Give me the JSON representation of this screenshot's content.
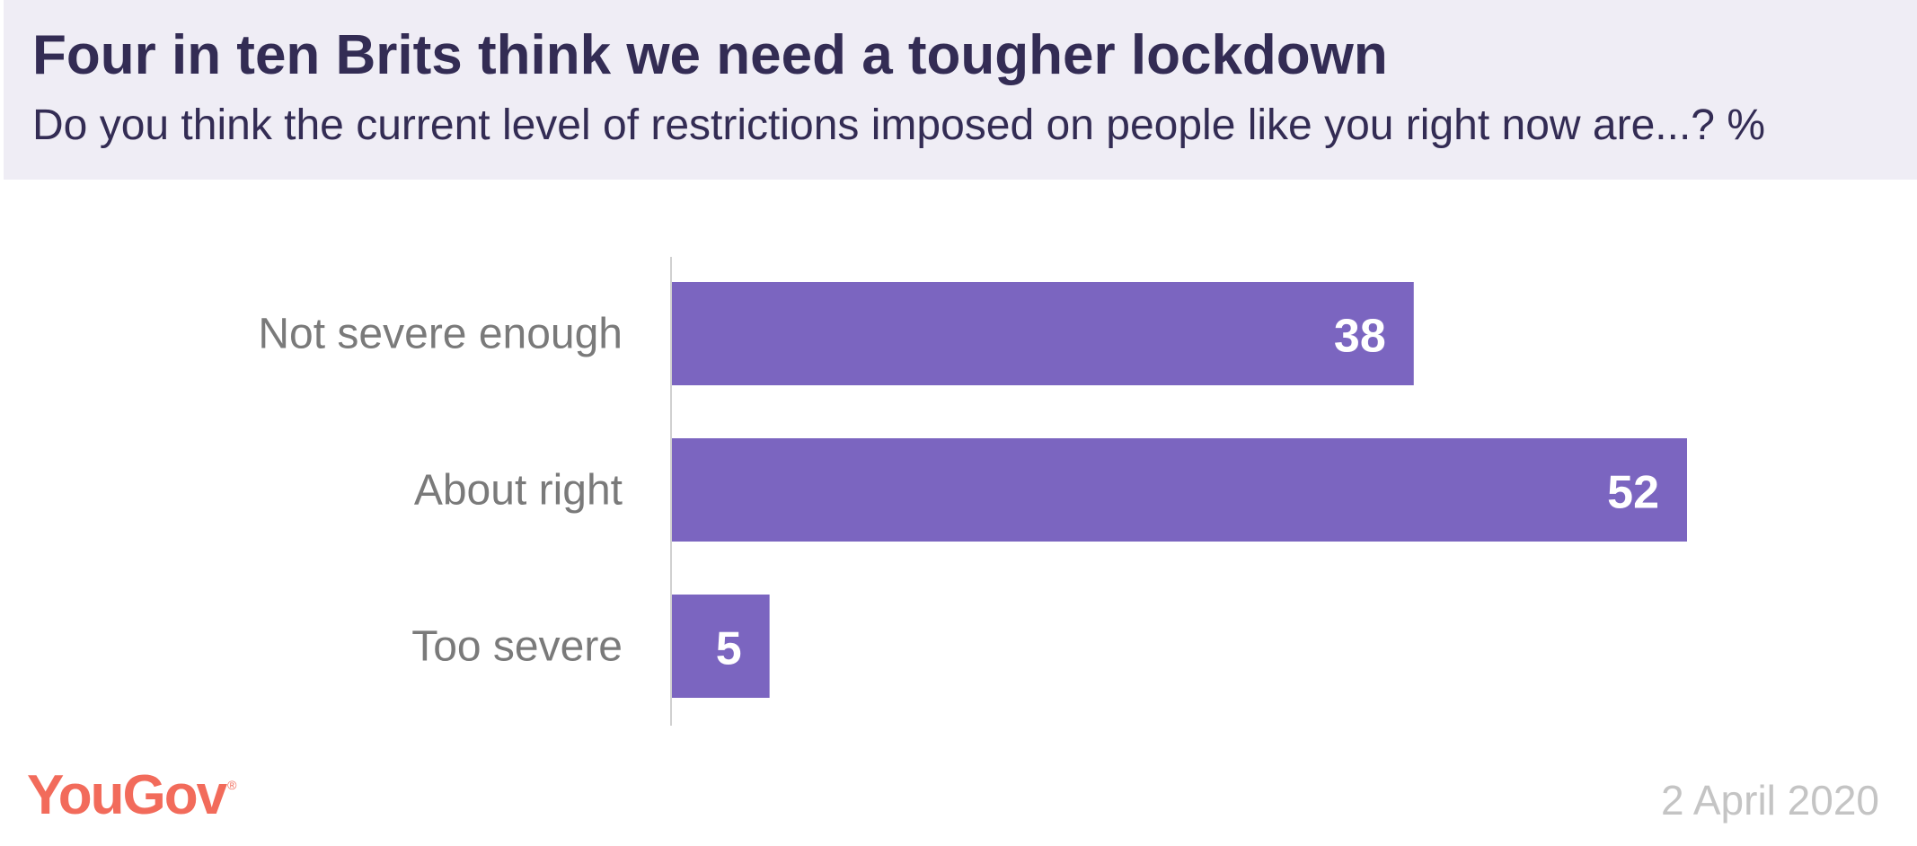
{
  "header": {
    "title": "Four in ten Brits think we need a tougher lockdown",
    "subtitle": "Do you think the current level of restrictions imposed on people like you right now are...? %"
  },
  "chart_data": {
    "type": "bar",
    "orientation": "horizontal",
    "categories": [
      "Not severe enough",
      "About right",
      "Too severe"
    ],
    "values": [
      38,
      52,
      5
    ],
    "xlim": [
      0,
      60
    ],
    "bar_color": "#7b65c0",
    "label_color": "#ffffff",
    "category_label_color": "#7a7a7a",
    "grid": false
  },
  "footer": {
    "logo": "YouGov",
    "logo_mark": "®",
    "date": "2 April 2020"
  },
  "colors": {
    "header_bg": "#efedf5",
    "title": "#332c54",
    "logo": "#f26b5b",
    "date": "#c4c4c4"
  }
}
